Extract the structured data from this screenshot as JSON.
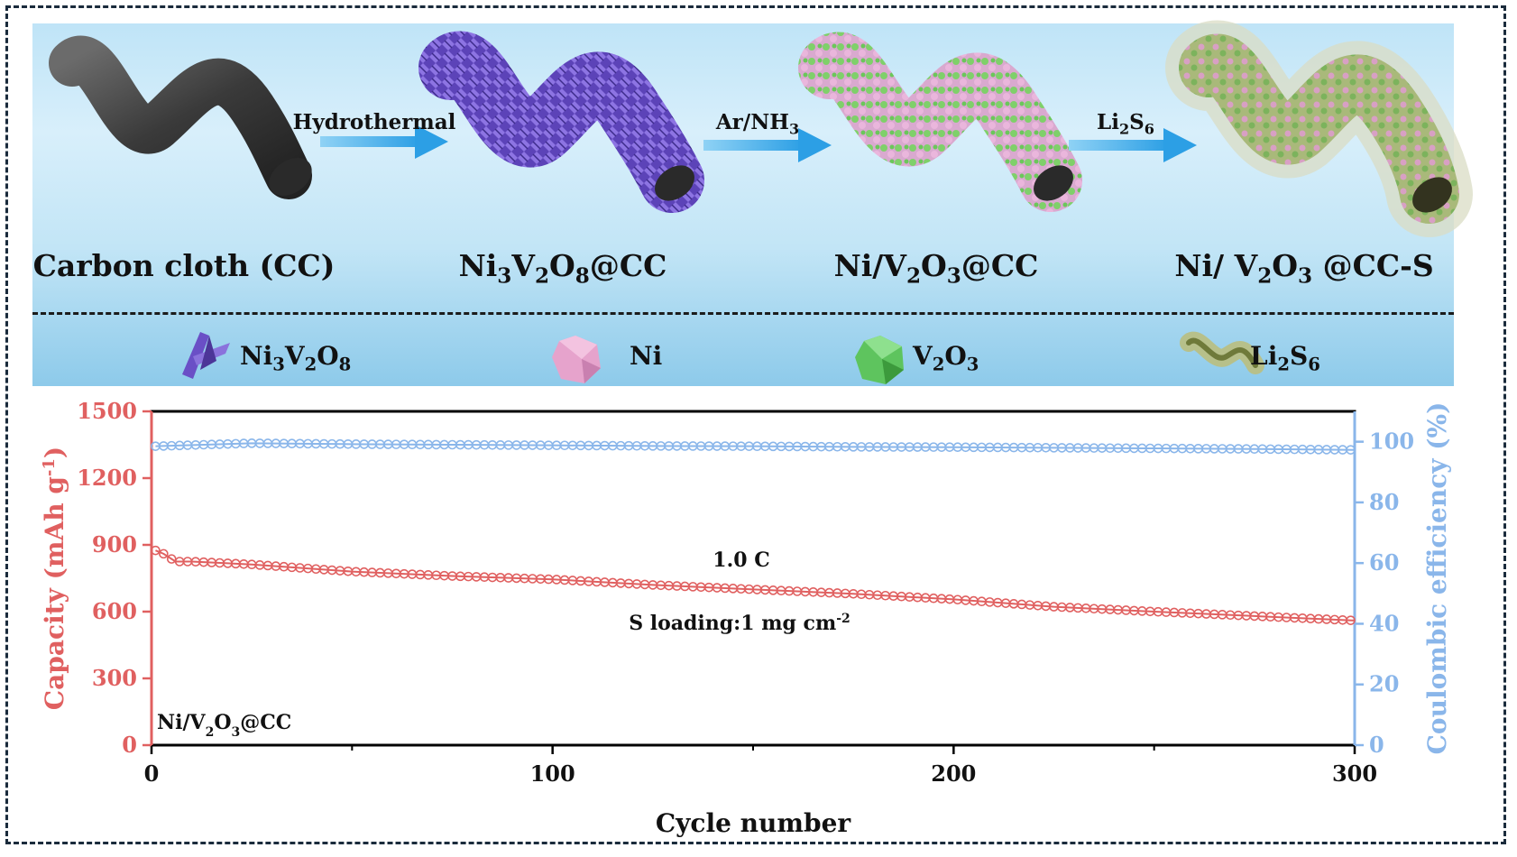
{
  "scheme": {
    "stages": [
      {
        "id": "cc",
        "label": "Carbon cloth (CC)",
        "color": "#3f3f3f"
      },
      {
        "id": "nvo",
        "label_parts": [
          "Ni",
          "3",
          "V",
          "2",
          "O",
          "8",
          "@CC"
        ],
        "color": "#6a4fc6"
      },
      {
        "id": "nivo",
        "label_parts": [
          "Ni/V",
          "2",
          "O",
          "3",
          "@CC"
        ],
        "color": "#b5d77f"
      },
      {
        "id": "nivos",
        "label_parts": [
          "Ni/ V",
          "2",
          "O",
          "3",
          " @CC-S"
        ],
        "color": "#c9d2a8"
      }
    ],
    "steps": [
      {
        "label": "Hydrothermal"
      },
      {
        "label_parts": [
          "Ar/NH",
          "3"
        ]
      },
      {
        "label_parts": [
          "Li",
          "2",
          "S",
          "6"
        ]
      }
    ],
    "arrow_color": "#3aa9e8",
    "legend": [
      {
        "icon": "ni3v2o8-crystal-icon",
        "label_parts": [
          "Ni",
          "3",
          "V",
          "2",
          "O",
          "8"
        ],
        "color": "#6a4fc6"
      },
      {
        "icon": "ni-icosahedron-icon",
        "label": "Ni",
        "color": "#e8a6cf"
      },
      {
        "icon": "v2o3-crystal-icon",
        "label_parts": [
          "V",
          "2",
          "O",
          "3"
        ],
        "color": "#5ec45e"
      },
      {
        "icon": "li2s6-coating-icon",
        "label_parts": [
          "Li",
          "2",
          "S",
          "6"
        ],
        "color": "#b7c08a"
      }
    ]
  },
  "chart_data": {
    "type": "line",
    "xlabel": "Cycle number",
    "ylabel_left_parts": [
      "Capacity (mAh g",
      "-1",
      ")"
    ],
    "ylabel_right": "Coulombic efficiency (%)",
    "xlim": [
      0,
      300
    ],
    "ylim_left": [
      0,
      1500
    ],
    "ylim_right": [
      0,
      110
    ],
    "xticks": [
      0,
      100,
      200,
      300
    ],
    "yticks_left": [
      0,
      300,
      600,
      900,
      1200,
      1500
    ],
    "yticks_right": [
      0,
      20,
      40,
      60,
      80,
      100
    ],
    "series": [
      {
        "name": "Capacity",
        "axis": "left",
        "color": "#e06060",
        "x": [
          1,
          3,
          6,
          10,
          25,
          50,
          75,
          100,
          125,
          150,
          175,
          200,
          225,
          250,
          275,
          300
        ],
        "values": [
          875,
          860,
          825,
          825,
          812,
          780,
          760,
          745,
          720,
          700,
          680,
          655,
          622,
          600,
          580,
          560
        ]
      },
      {
        "name": "Coulombic efficiency",
        "axis": "right",
        "color": "#8ab6ea",
        "x": [
          1,
          25,
          50,
          75,
          100,
          125,
          150,
          175,
          200,
          225,
          250,
          275,
          300
        ],
        "values": [
          98.5,
          99.5,
          99.2,
          99.0,
          98.8,
          98.6,
          98.5,
          98.3,
          98.2,
          98.0,
          97.8,
          97.6,
          97.3
        ]
      }
    ],
    "annotations": {
      "rate": "1.0 C",
      "loading_parts": [
        "S loading:1 mg cm",
        "-2"
      ],
      "sample_parts": [
        "Ni/V",
        "2",
        "O",
        "3",
        "@CC"
      ]
    }
  }
}
